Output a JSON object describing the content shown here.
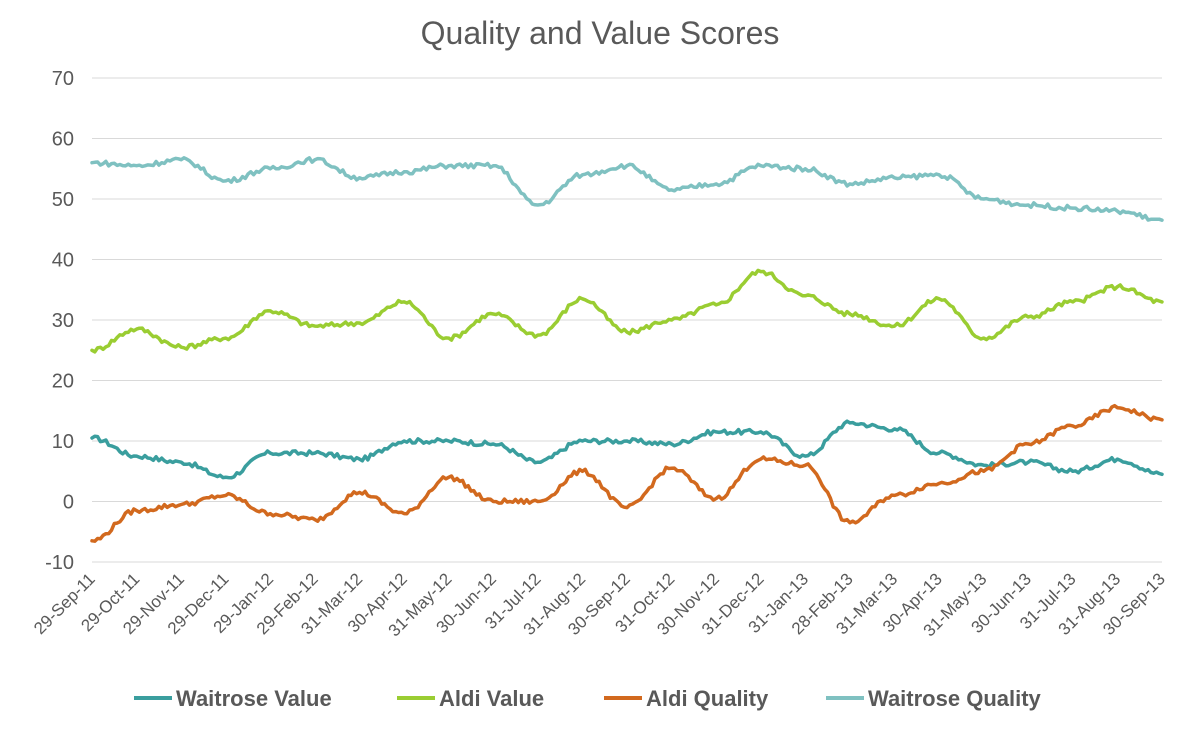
{
  "chart_data": {
    "type": "line",
    "title": "Quality and Value Scores",
    "xlabel": "",
    "ylabel": "",
    "ylim": [
      -10,
      70
    ],
    "yticks": [
      -10,
      0,
      10,
      20,
      30,
      40,
      50,
      60,
      70
    ],
    "grid": true,
    "legend_position": "bottom",
    "categories": [
      "29-Sep-11",
      "29-Oct-11",
      "29-Nov-11",
      "29-Dec-11",
      "29-Jan-12",
      "29-Feb-12",
      "31-Mar-12",
      "30-Apr-12",
      "31-May-12",
      "30-Jun-12",
      "31-Jul-12",
      "31-Aug-12",
      "30-Sep-12",
      "31-Oct-12",
      "30-Nov-12",
      "31-Dec-12",
      "31-Jan-13",
      "28-Feb-13",
      "31-Mar-13",
      "30-Apr-13",
      "31-May-13",
      "30-Jun-13",
      "31-Jul-13",
      "31-Aug-13",
      "30-Sep-13"
    ],
    "series": [
      {
        "name": "Waitrose Value",
        "color": "#3a9e9e",
        "values": [
          10.5,
          7.5,
          6.5,
          4,
          8,
          8,
          7,
          10,
          10,
          9.5,
          6.5,
          10,
          10,
          9.5,
          11.5,
          11.5,
          7.5,
          13,
          12,
          8,
          6,
          6.5,
          5,
          7,
          4.5
        ]
      },
      {
        "name": "Aldi Value",
        "color": "#9acd32",
        "values": [
          25,
          28.5,
          25.5,
          27,
          31.5,
          29,
          29.5,
          33,
          27,
          31,
          27.5,
          33.5,
          28,
          30,
          32.5,
          38,
          34,
          31,
          29,
          33.5,
          27,
          30.5,
          33,
          35.5,
          33
        ]
      },
      {
        "name": "Aldi Quality",
        "color": "#d2691e",
        "values": [
          -6.5,
          -1.5,
          -0.5,
          1,
          -2,
          -3,
          1.5,
          -2,
          4,
          0,
          0,
          5,
          -1,
          5.5,
          0.5,
          7,
          6,
          -3.5,
          1,
          3,
          5,
          9.5,
          12.5,
          15.5,
          13.5
        ]
      },
      {
        "name": "Waitrose Quality",
        "color": "#7fc1c1",
        "values": [
          56,
          55.5,
          56.5,
          53,
          55,
          56.5,
          53.5,
          54.5,
          55.5,
          55.5,
          49,
          54,
          55.5,
          51.5,
          52.5,
          55.5,
          55,
          52.5,
          53.5,
          54,
          50,
          49,
          48.5,
          48,
          46.5
        ]
      }
    ]
  }
}
